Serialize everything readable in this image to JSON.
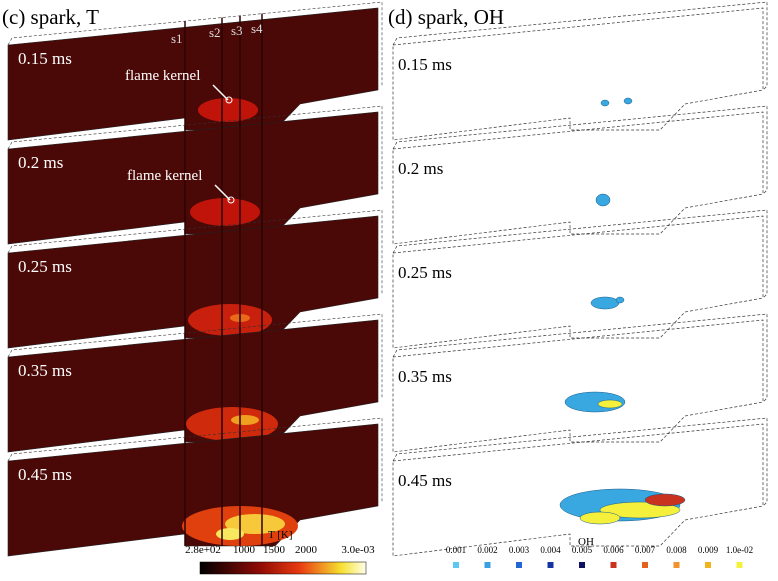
{
  "left": {
    "title": "(c) spark, T",
    "probes": [
      "s1",
      "s2",
      "s3",
      "s4"
    ],
    "times": [
      "0.15 ms",
      "0.2 ms",
      "0.25 ms",
      "0.35 ms",
      "0.45 ms"
    ],
    "annotations": [
      "flame kernel",
      "flame kernel"
    ],
    "colorbar": {
      "title": "T [K]",
      "labels": [
        "2.8e+02",
        "1000",
        "1500",
        "2000",
        "3.0e-03"
      ]
    }
  },
  "right": {
    "title": "(d) spark, OH",
    "times": [
      "0.15 ms",
      "0.2 ms",
      "0.25 ms",
      "0.35 ms",
      "0.45 ms"
    ],
    "label": "OH",
    "legend": [
      {
        "label": "0.001",
        "color": "#5cc8f2"
      },
      {
        "label": "0.002",
        "color": "#3aa0e4"
      },
      {
        "label": "0.003",
        "color": "#2166d2"
      },
      {
        "label": "0.004",
        "color": "#1434a4"
      },
      {
        "label": "0.005",
        "color": "#101060"
      },
      {
        "label": "0.006",
        "color": "#c8321e"
      },
      {
        "label": "0.007",
        "color": "#e2621e"
      },
      {
        "label": "0.008",
        "color": "#f0922e"
      },
      {
        "label": "0.009",
        "color": "#f2b41e"
      },
      {
        "label": "1.0e-02",
        "color": "#f4f03c"
      }
    ]
  }
}
